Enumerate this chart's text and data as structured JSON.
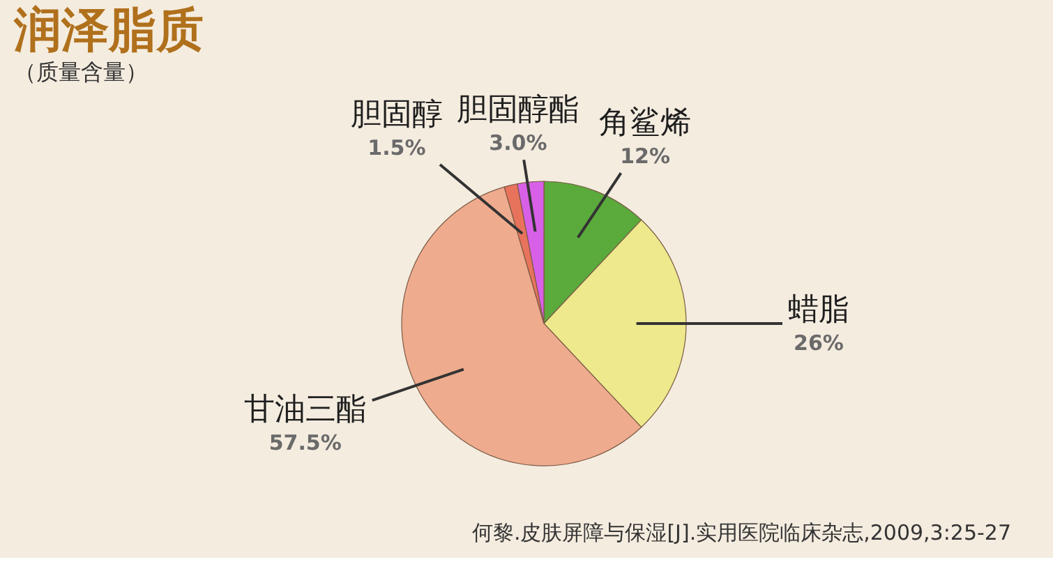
{
  "chart_data": {
    "type": "pie",
    "title": "润泽脂质",
    "subtitle": "（质量含量）",
    "categories": [
      "角鲨烯",
      "蜡脂",
      "甘油三酯",
      "胆固醇",
      "胆固醇酯"
    ],
    "values": [
      12,
      26,
      57.5,
      1.5,
      3.0
    ],
    "value_labels": [
      "12%",
      "26%",
      "57.5%",
      "1.5%",
      "3.0%"
    ],
    "colors": [
      "#5aaa3c",
      "#ede98c",
      "#efab8e",
      "#e8735c",
      "#d860e6"
    ],
    "annotations": [
      "何黎.皮肤屏障与保湿[J].实用医院临床杂志,2009,3:25-27"
    ]
  }
}
